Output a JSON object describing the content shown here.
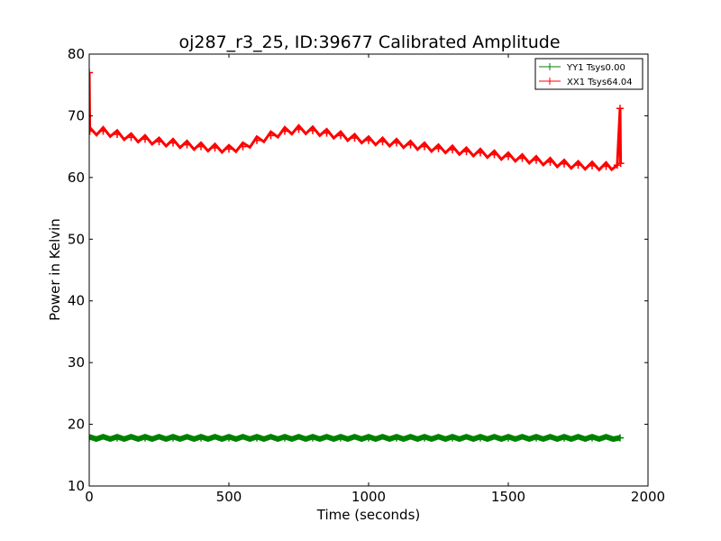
{
  "chart_data": {
    "type": "line",
    "title": "oj287_r3_25, ID:39677 Calibrated Amplitude",
    "xlabel": "Time (seconds)",
    "ylabel": "Power in Kelvin",
    "xlim": [
      0,
      2000
    ],
    "ylim": [
      10,
      80
    ],
    "xticks": [
      "0",
      "500",
      "1000",
      "1500",
      "2000"
    ],
    "yticks": [
      "10",
      "20",
      "30",
      "40",
      "50",
      "60",
      "70",
      "80"
    ],
    "grid": false,
    "legend_position": "top-right",
    "series": [
      {
        "name": "YY1 Tsys0.00",
        "color": "#008000",
        "marker": "+",
        "x": [
          0,
          100,
          200,
          300,
          400,
          500,
          600,
          700,
          800,
          900,
          1000,
          1100,
          1200,
          1300,
          1400,
          1500,
          1600,
          1700,
          1800,
          1900
        ],
        "y": [
          17.8,
          17.8,
          17.8,
          17.8,
          17.8,
          17.8,
          17.8,
          17.8,
          17.8,
          17.8,
          17.8,
          17.8,
          17.8,
          17.8,
          17.8,
          17.8,
          17.8,
          17.8,
          17.8,
          17.8
        ]
      },
      {
        "name": "XX1 Tsys64.04",
        "color": "#ff0000",
        "marker": "+",
        "x": [
          0,
          2,
          50,
          100,
          150,
          200,
          250,
          300,
          350,
          400,
          450,
          500,
          550,
          600,
          650,
          700,
          750,
          800,
          850,
          900,
          950,
          1000,
          1050,
          1100,
          1150,
          1200,
          1250,
          1300,
          1350,
          1400,
          1450,
          1500,
          1550,
          1600,
          1650,
          1700,
          1750,
          1800,
          1850,
          1890,
          1900,
          1902
        ],
        "y": [
          77,
          67.5,
          67.5,
          67,
          66.5,
          66.2,
          65.8,
          65.6,
          65.3,
          65.0,
          64.8,
          64.6,
          65.0,
          66.0,
          66.8,
          67.5,
          67.8,
          67.6,
          67.2,
          66.8,
          66.4,
          66.0,
          65.8,
          65.6,
          65.3,
          65.0,
          64.7,
          64.5,
          64.2,
          64.0,
          63.7,
          63.4,
          63.1,
          62.8,
          62.5,
          62.2,
          62.0,
          61.9,
          61.8,
          62.0,
          71.2,
          62.3
        ]
      }
    ]
  }
}
